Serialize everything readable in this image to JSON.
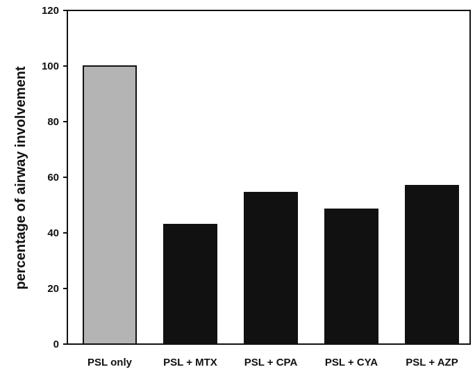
{
  "chart_data": {
    "type": "bar",
    "title": "",
    "xlabel": "",
    "ylabel": "percentage of airway involvement",
    "ylim": [
      0,
      120
    ],
    "yticks": [
      0,
      20,
      40,
      60,
      80,
      100,
      120
    ],
    "grid": false,
    "categories": [
      "PSL only",
      "PSL + MTX",
      "PSL + CPA",
      "PSL + CYA",
      "PSL + AZP"
    ],
    "values": [
      100,
      43,
      54.5,
      48.5,
      57
    ],
    "colors": [
      "#b4b4b4",
      "#111111",
      "#111111",
      "#111111",
      "#111111"
    ]
  }
}
